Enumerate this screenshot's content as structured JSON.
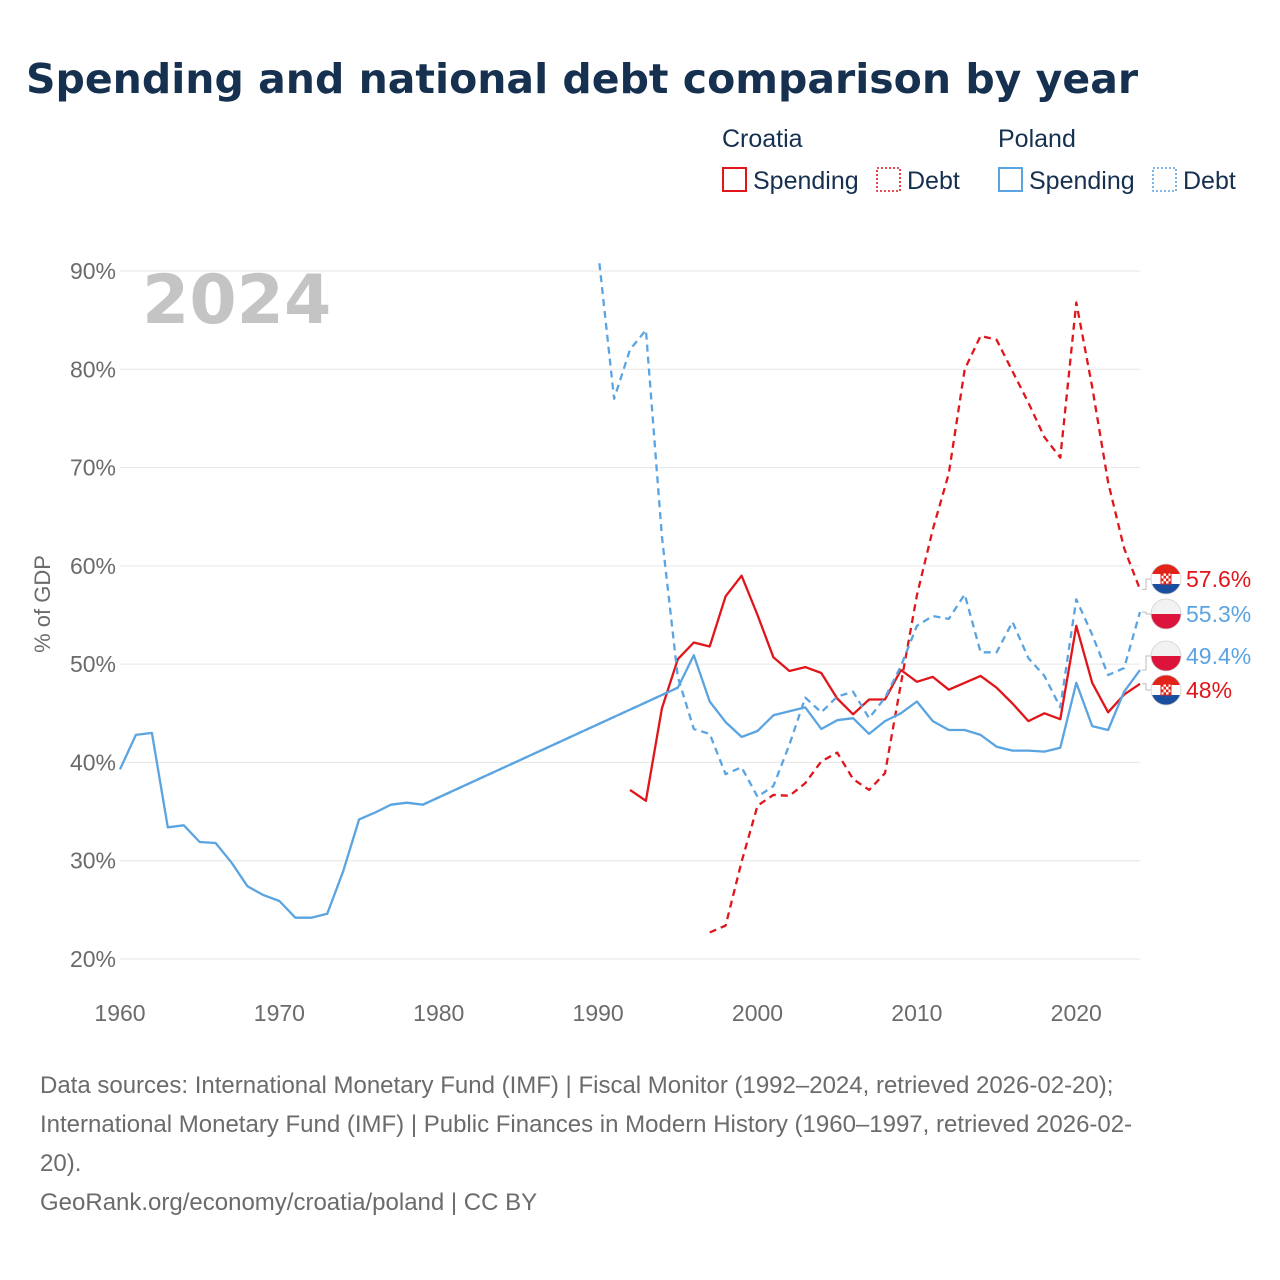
{
  "chart_data": {
    "type": "line",
    "title": "Spending and national debt comparison by year",
    "ylabel": "% of GDP",
    "xlabel": "",
    "xlim": [
      1960,
      2024
    ],
    "ylim": [
      20,
      90
    ],
    "x_ticks": [
      1960,
      1970,
      1980,
      1990,
      2000,
      2010,
      2020
    ],
    "x_tick_labels": [
      "1960",
      "1970",
      "1980",
      "1990",
      "2000",
      "2010",
      "2020"
    ],
    "y_ticks": [
      20,
      30,
      40,
      50,
      60,
      70,
      80,
      90
    ],
    "y_tick_labels": [
      "20%",
      "30%",
      "40%",
      "50%",
      "60%",
      "70%",
      "80%",
      "90%"
    ],
    "year_label": "2024",
    "grid": true,
    "legend": {
      "placement": "top-right",
      "groups": [
        {
          "country": "Croatia",
          "items": [
            {
              "label": "Spending",
              "style": "solid"
            },
            {
              "label": "Debt",
              "style": "dashed"
            }
          ]
        },
        {
          "country": "Poland",
          "items": [
            {
              "label": "Spending",
              "style": "solid"
            },
            {
              "label": "Debt",
              "style": "dashed"
            }
          ]
        }
      ]
    },
    "series": [
      {
        "name": "Croatia Spending",
        "country": "Croatia",
        "metric": "Spending",
        "style": "solid",
        "color": "#e0161b",
        "end_label": "48%",
        "end_value": 48.0,
        "points": [
          [
            1992,
            37.2
          ],
          [
            1993,
            36.1
          ],
          [
            1994,
            45.5
          ],
          [
            1995,
            50.5
          ],
          [
            1996,
            52.2
          ],
          [
            1997,
            51.8
          ],
          [
            1998,
            56.9
          ],
          [
            1999,
            59.0
          ],
          [
            2000,
            55.0
          ],
          [
            2001,
            50.7
          ],
          [
            2002,
            49.3
          ],
          [
            2003,
            49.7
          ],
          [
            2004,
            49.1
          ],
          [
            2005,
            46.5
          ],
          [
            2006,
            44.9
          ],
          [
            2007,
            46.4
          ],
          [
            2008,
            46.4
          ],
          [
            2009,
            49.4
          ],
          [
            2010,
            48.2
          ],
          [
            2011,
            48.7
          ],
          [
            2012,
            47.4
          ],
          [
            2013,
            48.1
          ],
          [
            2014,
            48.8
          ],
          [
            2015,
            47.6
          ],
          [
            2016,
            46.0
          ],
          [
            2017,
            44.2
          ],
          [
            2018,
            45.0
          ],
          [
            2019,
            44.4
          ],
          [
            2020,
            53.9
          ],
          [
            2021,
            48.1
          ],
          [
            2022,
            45.1
          ],
          [
            2023,
            46.9
          ],
          [
            2024,
            48.0
          ]
        ]
      },
      {
        "name": "Croatia Debt",
        "country": "Croatia",
        "metric": "Debt",
        "style": "dashed",
        "color": "#e0161b",
        "end_label": "57.6%",
        "end_value": 57.6,
        "points": [
          [
            1997,
            22.7
          ],
          [
            1998,
            23.4
          ],
          [
            1999,
            29.9
          ],
          [
            2000,
            35.6
          ],
          [
            2001,
            36.7
          ],
          [
            2002,
            36.6
          ],
          [
            2003,
            37.9
          ],
          [
            2004,
            40.1
          ],
          [
            2005,
            41.0
          ],
          [
            2006,
            38.3
          ],
          [
            2007,
            37.2
          ],
          [
            2008,
            38.9
          ],
          [
            2009,
            48.0
          ],
          [
            2010,
            57.0
          ],
          [
            2011,
            63.7
          ],
          [
            2012,
            69.4
          ],
          [
            2013,
            80.0
          ],
          [
            2014,
            83.4
          ],
          [
            2015,
            83.0
          ],
          [
            2016,
            79.8
          ],
          [
            2017,
            76.6
          ],
          [
            2018,
            73.1
          ],
          [
            2019,
            71.0
          ],
          [
            2020,
            86.8
          ],
          [
            2021,
            78.2
          ],
          [
            2022,
            68.5
          ],
          [
            2023,
            61.8
          ],
          [
            2024,
            57.6
          ]
        ]
      },
      {
        "name": "Poland Spending",
        "country": "Poland",
        "metric": "Spending",
        "style": "solid",
        "color": "#5ba4e2",
        "end_label": "49.4%",
        "end_value": 49.4,
        "points": [
          [
            1960,
            39.3
          ],
          [
            1961,
            42.8
          ],
          [
            1962,
            43.0
          ],
          [
            1963,
            33.4
          ],
          [
            1964,
            33.6
          ],
          [
            1965,
            31.9
          ],
          [
            1966,
            31.8
          ],
          [
            1967,
            29.8
          ],
          [
            1968,
            27.4
          ],
          [
            1969,
            26.5
          ],
          [
            1970,
            25.9
          ],
          [
            1971,
            24.2
          ],
          [
            1972,
            24.2
          ],
          [
            1973,
            24.6
          ],
          [
            1974,
            28.9
          ],
          [
            1975,
            34.2
          ],
          [
            1976,
            34.9
          ],
          [
            1977,
            35.7
          ],
          [
            1978,
            35.9
          ],
          [
            1979,
            35.7
          ],
          [
            1995,
            47.6
          ],
          [
            1996,
            50.9
          ],
          [
            1997,
            46.2
          ],
          [
            1998,
            44.1
          ],
          [
            1999,
            42.6
          ],
          [
            2000,
            43.2
          ],
          [
            2001,
            44.8
          ],
          [
            2002,
            45.2
          ],
          [
            2003,
            45.6
          ],
          [
            2004,
            43.4
          ],
          [
            2005,
            44.3
          ],
          [
            2006,
            44.5
          ],
          [
            2007,
            42.9
          ],
          [
            2008,
            44.2
          ],
          [
            2009,
            45.0
          ],
          [
            2010,
            46.2
          ],
          [
            2011,
            44.2
          ],
          [
            2012,
            43.3
          ],
          [
            2013,
            43.3
          ],
          [
            2014,
            42.8
          ],
          [
            2015,
            41.6
          ],
          [
            2016,
            41.2
          ],
          [
            2017,
            41.2
          ],
          [
            2018,
            41.1
          ],
          [
            2019,
            41.5
          ],
          [
            2020,
            48.1
          ],
          [
            2021,
            43.7
          ],
          [
            2022,
            43.3
          ],
          [
            2023,
            47.2
          ],
          [
            2024,
            49.4
          ]
        ]
      },
      {
        "name": "Poland Spending (gap)",
        "country": "Poland",
        "metric": "Spending",
        "style": "dashed",
        "color": "#5ba4e2",
        "end_label": "",
        "end_value": null,
        "points": [
          [
            1979,
            35.7
          ],
          [
            1995,
            47.6
          ]
        ]
      },
      {
        "name": "Poland Debt",
        "country": "Poland",
        "metric": "Debt",
        "style": "dashed",
        "color": "#5ba4e2",
        "end_label": "55.3%",
        "end_value": 55.3,
        "points": [
          [
            1990,
            92.0
          ],
          [
            1991,
            77.0
          ],
          [
            1992,
            82.0
          ],
          [
            1993,
            84.0
          ],
          [
            1994,
            63.0
          ],
          [
            1995,
            48.7
          ],
          [
            1996,
            43.4
          ],
          [
            1997,
            42.9
          ],
          [
            1998,
            38.8
          ],
          [
            1999,
            39.5
          ],
          [
            2000,
            36.5
          ],
          [
            2001,
            37.6
          ],
          [
            2002,
            41.8
          ],
          [
            2003,
            46.6
          ],
          [
            2004,
            45.1
          ],
          [
            2005,
            46.7
          ],
          [
            2006,
            47.2
          ],
          [
            2007,
            44.5
          ],
          [
            2008,
            46.6
          ],
          [
            2009,
            49.8
          ],
          [
            2010,
            53.9
          ],
          [
            2011,
            54.9
          ],
          [
            2012,
            54.6
          ],
          [
            2013,
            57.1
          ],
          [
            2014,
            51.2
          ],
          [
            2015,
            51.2
          ],
          [
            2016,
            54.3
          ],
          [
            2017,
            50.6
          ],
          [
            2018,
            48.8
          ],
          [
            2019,
            45.6
          ],
          [
            2020,
            56.6
          ],
          [
            2021,
            53.0
          ],
          [
            2022,
            48.9
          ],
          [
            2023,
            49.6
          ],
          [
            2024,
            55.3
          ]
        ]
      }
    ]
  },
  "colors": {
    "croatia": "#e0161b",
    "poland": "#5ba4e2",
    "title": "#16304f",
    "muted": "#6b6b6b",
    "grid": "#e6e6e6",
    "year": "#c4c4c4"
  },
  "footer": {
    "source_line_1": "Data sources: International Monetary Fund (IMF) | Fiscal Monitor (1992–2024, retrieved 2026-02-20);",
    "source_line_2": "International Monetary Fund (IMF) | Public Finances in Modern History (1960–1997, retrieved 2026-02-",
    "source_line_3": "20).",
    "credit": "GeoRank.org/economy/croatia/poland | CC BY"
  }
}
